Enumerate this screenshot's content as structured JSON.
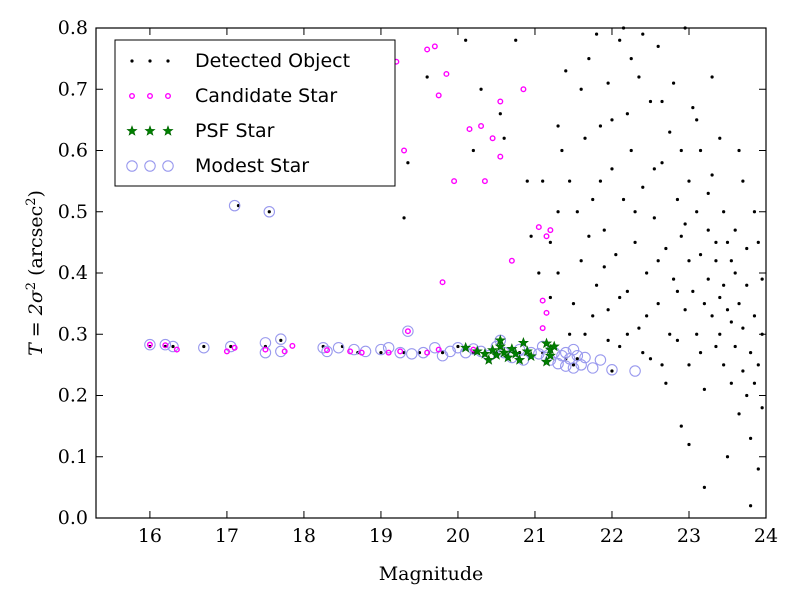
{
  "chart_data": {
    "type": "scatter",
    "title": "",
    "xlabel": "Magnitude",
    "ylabel": {
      "prefix": "T = 2σ",
      "sup": "2",
      "middle": " (arcsec",
      "sup2": "2",
      "suffix": ")"
    },
    "xlim": [
      15.3,
      24
    ],
    "ylim": [
      0,
      0.8
    ],
    "x_ticks": [
      16,
      17,
      18,
      19,
      20,
      21,
      22,
      23,
      24
    ],
    "y_ticks": [
      0.0,
      0.1,
      0.2,
      0.3,
      0.4,
      0.5,
      0.6,
      0.7,
      0.8
    ],
    "y_tick_labels": [
      "0.0",
      "0.1",
      "0.2",
      "0.3",
      "0.4",
      "0.5",
      "0.6",
      "0.7",
      "0.8"
    ],
    "grid": false,
    "legend": {
      "position": "top-left",
      "entries": [
        "Detected Object",
        "Candidate Star",
        "PSF Star",
        "Modest Star"
      ]
    },
    "colors": {
      "detected": "#000000",
      "candidate": "#ff00ff",
      "psf": "#008000",
      "modest": "#9999ee"
    },
    "series": [
      {
        "name": "Detected Object",
        "marker": "dot",
        "points": [
          [
            17.15,
            0.51
          ],
          [
            17.55,
            0.5
          ],
          [
            16.0,
            0.28
          ],
          [
            16.2,
            0.28
          ],
          [
            16.3,
            0.28
          ],
          [
            16.7,
            0.28
          ],
          [
            17.05,
            0.28
          ],
          [
            17.5,
            0.28
          ],
          [
            17.7,
            0.29
          ],
          [
            18.25,
            0.28
          ],
          [
            18.5,
            0.28
          ],
          [
            18.7,
            0.27
          ],
          [
            19.0,
            0.27
          ],
          [
            19.3,
            0.27
          ],
          [
            19.5,
            0.27
          ],
          [
            19.8,
            0.27
          ],
          [
            20.0,
            0.28
          ],
          [
            20.2,
            0.27
          ],
          [
            20.5,
            0.27
          ],
          [
            20.8,
            0.27
          ],
          [
            21.1,
            0.27
          ],
          [
            21.4,
            0.26
          ],
          [
            21.55,
            0.26
          ],
          [
            21.5,
            0.25
          ],
          [
            22.0,
            0.24
          ],
          [
            19.15,
            0.66
          ],
          [
            19.3,
            0.49
          ],
          [
            19.35,
            0.58
          ],
          [
            19.6,
            0.72
          ],
          [
            20.3,
            0.7
          ],
          [
            20.55,
            0.66
          ],
          [
            20.6,
            0.62
          ],
          [
            20.2,
            0.6
          ],
          [
            20.9,
            0.55
          ],
          [
            20.95,
            0.46
          ],
          [
            21.1,
            0.55
          ],
          [
            21.2,
            0.45
          ],
          [
            21.3,
            0.64
          ],
          [
            21.3,
            0.5
          ],
          [
            21.3,
            0.4
          ],
          [
            21.4,
            0.73
          ],
          [
            21.45,
            0.55
          ],
          [
            21.5,
            0.35
          ],
          [
            21.55,
            0.5
          ],
          [
            21.6,
            0.42
          ],
          [
            21.65,
            0.62
          ],
          [
            21.65,
            0.3
          ],
          [
            21.7,
            0.75
          ],
          [
            21.75,
            0.52
          ],
          [
            21.8,
            0.38
          ],
          [
            21.85,
            0.64
          ],
          [
            21.9,
            0.47
          ],
          [
            21.95,
            0.71
          ],
          [
            21.95,
            0.34
          ],
          [
            22.0,
            0.57
          ],
          [
            22.05,
            0.43
          ],
          [
            22.1,
            0.78
          ],
          [
            22.1,
            0.28
          ],
          [
            22.15,
            0.52
          ],
          [
            22.2,
            0.66
          ],
          [
            22.2,
            0.37
          ],
          [
            22.25,
            0.6
          ],
          [
            22.3,
            0.45
          ],
          [
            22.35,
            0.72
          ],
          [
            22.35,
            0.31
          ],
          [
            22.4,
            0.54
          ],
          [
            22.45,
            0.4
          ],
          [
            22.5,
            0.68
          ],
          [
            22.5,
            0.26
          ],
          [
            22.55,
            0.49
          ],
          [
            22.6,
            0.77
          ],
          [
            22.6,
            0.35
          ],
          [
            22.65,
            0.58
          ],
          [
            22.7,
            0.44
          ],
          [
            22.7,
            0.22
          ],
          [
            22.75,
            0.63
          ],
          [
            22.8,
            0.39
          ],
          [
            22.8,
            0.71
          ],
          [
            22.85,
            0.52
          ],
          [
            22.85,
            0.29
          ],
          [
            22.9,
            0.46
          ],
          [
            22.9,
            0.6
          ],
          [
            22.95,
            0.34
          ],
          [
            23.0,
            0.55
          ],
          [
            23.0,
            0.42
          ],
          [
            23.0,
            0.25
          ],
          [
            23.05,
            0.67
          ],
          [
            23.05,
            0.37
          ],
          [
            23.1,
            0.5
          ],
          [
            23.1,
            0.3
          ],
          [
            23.15,
            0.43
          ],
          [
            23.15,
            0.6
          ],
          [
            23.2,
            0.35
          ],
          [
            23.2,
            0.21
          ],
          [
            23.25,
            0.47
          ],
          [
            23.25,
            0.39
          ],
          [
            23.3,
            0.33
          ],
          [
            23.3,
            0.56
          ],
          [
            23.35,
            0.28
          ],
          [
            23.35,
            0.42
          ],
          [
            23.4,
            0.36
          ],
          [
            23.4,
            0.3
          ],
          [
            23.45,
            0.38
          ],
          [
            23.45,
            0.25
          ],
          [
            23.5,
            0.34
          ],
          [
            23.5,
            0.45
          ],
          [
            23.55,
            0.32
          ],
          [
            23.55,
            0.22
          ],
          [
            23.6,
            0.4
          ],
          [
            23.6,
            0.28
          ],
          [
            23.65,
            0.35
          ],
          [
            23.65,
            0.17
          ],
          [
            23.7,
            0.31
          ],
          [
            23.7,
            0.24
          ],
          [
            23.75,
            0.38
          ],
          [
            23.75,
            0.2
          ],
          [
            23.8,
            0.27
          ],
          [
            23.8,
            0.13
          ],
          [
            23.85,
            0.33
          ],
          [
            23.85,
            0.22
          ],
          [
            23.9,
            0.25
          ],
          [
            23.9,
            0.08
          ],
          [
            23.95,
            0.3
          ],
          [
            23.95,
            0.18
          ],
          [
            23.2,
            0.05
          ],
          [
            23.8,
            0.02
          ],
          [
            23.0,
            0.12
          ],
          [
            23.5,
            0.1
          ],
          [
            22.9,
            0.15
          ],
          [
            23.6,
            0.47
          ],
          [
            23.1,
            0.65
          ],
          [
            23.3,
            0.72
          ],
          [
            22.4,
            0.79
          ],
          [
            22.95,
            0.8
          ],
          [
            23.4,
            0.62
          ],
          [
            23.7,
            0.55
          ],
          [
            23.9,
            0.45
          ],
          [
            23.45,
            0.5
          ],
          [
            23.65,
            0.6
          ],
          [
            23.85,
            0.5
          ],
          [
            23.95,
            0.39
          ],
          [
            22.6,
            0.42
          ],
          [
            22.3,
            0.5
          ],
          [
            22.1,
            0.36
          ],
          [
            21.9,
            0.41
          ],
          [
            21.7,
            0.46
          ],
          [
            22.45,
            0.33
          ],
          [
            22.75,
            0.3
          ],
          [
            22.55,
            0.57
          ],
          [
            22.25,
            0.75
          ],
          [
            22.0,
            0.65
          ],
          [
            21.85,
            0.55
          ],
          [
            21.6,
            0.7
          ],
          [
            21.35,
            0.6
          ],
          [
            21.2,
            0.36
          ],
          [
            21.45,
            0.3
          ],
          [
            21.05,
            0.4
          ],
          [
            20.75,
            0.78
          ],
          [
            20.1,
            0.78
          ],
          [
            21.8,
            0.79
          ],
          [
            22.15,
            0.8
          ],
          [
            22.65,
            0.68
          ],
          [
            22.95,
            0.48
          ],
          [
            23.25,
            0.53
          ],
          [
            23.55,
            0.42
          ],
          [
            23.75,
            0.44
          ],
          [
            23.35,
            0.45
          ],
          [
            23.15,
            0.27
          ],
          [
            22.85,
            0.37
          ],
          [
            22.65,
            0.25
          ],
          [
            22.4,
            0.27
          ],
          [
            22.2,
            0.3
          ],
          [
            21.95,
            0.29
          ],
          [
            21.75,
            0.33
          ]
        ]
      },
      {
        "name": "Candidate Star",
        "marker": "small-ring",
        "points": [
          [
            16.0,
            0.283
          ],
          [
            16.2,
            0.282
          ],
          [
            16.35,
            0.275
          ],
          [
            17.0,
            0.272
          ],
          [
            17.1,
            0.278
          ],
          [
            17.5,
            0.275
          ],
          [
            17.75,
            0.272
          ],
          [
            17.85,
            0.281
          ],
          [
            18.3,
            0.274
          ],
          [
            18.6,
            0.272
          ],
          [
            18.75,
            0.27
          ],
          [
            19.1,
            0.27
          ],
          [
            19.25,
            0.272
          ],
          [
            19.35,
            0.305
          ],
          [
            19.6,
            0.27
          ],
          [
            19.75,
            0.275
          ],
          [
            20.2,
            0.275
          ],
          [
            19.7,
            0.77
          ],
          [
            19.85,
            0.725
          ],
          [
            19.75,
            0.69
          ],
          [
            20.15,
            0.635
          ],
          [
            20.3,
            0.64
          ],
          [
            20.45,
            0.62
          ],
          [
            20.55,
            0.68
          ],
          [
            20.35,
            0.55
          ],
          [
            20.55,
            0.59
          ],
          [
            19.3,
            0.6
          ],
          [
            19.95,
            0.55
          ],
          [
            19.8,
            0.385
          ],
          [
            20.7,
            0.42
          ],
          [
            21.05,
            0.475
          ],
          [
            21.15,
            0.46
          ],
          [
            21.1,
            0.355
          ],
          [
            21.1,
            0.31
          ],
          [
            19.2,
            0.745
          ],
          [
            19.6,
            0.765
          ],
          [
            20.85,
            0.7
          ],
          [
            21.2,
            0.47
          ],
          [
            21.15,
            0.335
          ]
        ]
      },
      {
        "name": "PSF Star",
        "marker": "star",
        "points": [
          [
            20.1,
            0.278
          ],
          [
            20.25,
            0.272
          ],
          [
            20.35,
            0.268
          ],
          [
            20.45,
            0.274
          ],
          [
            20.5,
            0.266
          ],
          [
            20.55,
            0.28
          ],
          [
            20.6,
            0.27
          ],
          [
            20.65,
            0.262
          ],
          [
            20.7,
            0.276
          ],
          [
            20.75,
            0.268
          ],
          [
            20.8,
            0.258
          ],
          [
            20.85,
            0.286
          ],
          [
            20.9,
            0.272
          ],
          [
            20.95,
            0.264
          ],
          [
            21.15,
            0.285
          ],
          [
            21.2,
            0.265
          ],
          [
            21.2,
            0.275
          ],
          [
            21.25,
            0.28
          ],
          [
            20.55,
            0.29
          ],
          [
            20.4,
            0.258
          ],
          [
            21.15,
            0.255
          ]
        ]
      },
      {
        "name": "Modest Star",
        "marker": "ring",
        "points": [
          [
            16.0,
            0.283
          ],
          [
            16.2,
            0.283
          ],
          [
            16.3,
            0.28
          ],
          [
            16.7,
            0.278
          ],
          [
            17.05,
            0.28
          ],
          [
            17.1,
            0.51
          ],
          [
            17.55,
            0.5
          ],
          [
            17.5,
            0.286
          ],
          [
            17.5,
            0.27
          ],
          [
            17.7,
            0.292
          ],
          [
            17.7,
            0.272
          ],
          [
            18.25,
            0.278
          ],
          [
            18.3,
            0.272
          ],
          [
            18.45,
            0.278
          ],
          [
            18.65,
            0.275
          ],
          [
            18.8,
            0.272
          ],
          [
            19.0,
            0.275
          ],
          [
            19.1,
            0.278
          ],
          [
            19.25,
            0.27
          ],
          [
            19.35,
            0.305
          ],
          [
            19.4,
            0.268
          ],
          [
            19.55,
            0.27
          ],
          [
            19.7,
            0.278
          ],
          [
            19.8,
            0.265
          ],
          [
            19.9,
            0.272
          ],
          [
            20.0,
            0.278
          ],
          [
            20.1,
            0.27
          ],
          [
            20.2,
            0.276
          ],
          [
            20.3,
            0.272
          ],
          [
            20.4,
            0.265
          ],
          [
            20.5,
            0.28
          ],
          [
            20.55,
            0.29
          ],
          [
            20.6,
            0.27
          ],
          [
            20.7,
            0.262
          ],
          [
            20.8,
            0.275
          ],
          [
            20.85,
            0.258
          ],
          [
            20.95,
            0.27
          ],
          [
            21.05,
            0.268
          ],
          [
            21.1,
            0.28
          ],
          [
            21.15,
            0.262
          ],
          [
            21.2,
            0.258
          ],
          [
            21.25,
            0.27
          ],
          [
            21.3,
            0.252
          ],
          [
            21.35,
            0.265
          ],
          [
            21.4,
            0.248
          ],
          [
            21.45,
            0.26
          ],
          [
            21.5,
            0.245
          ],
          [
            21.55,
            0.265
          ],
          [
            21.6,
            0.25
          ],
          [
            21.65,
            0.262
          ],
          [
            21.75,
            0.245
          ],
          [
            21.85,
            0.258
          ],
          [
            22.0,
            0.242
          ],
          [
            22.3,
            0.24
          ],
          [
            21.5,
            0.275
          ],
          [
            21.4,
            0.27
          ]
        ]
      }
    ]
  }
}
